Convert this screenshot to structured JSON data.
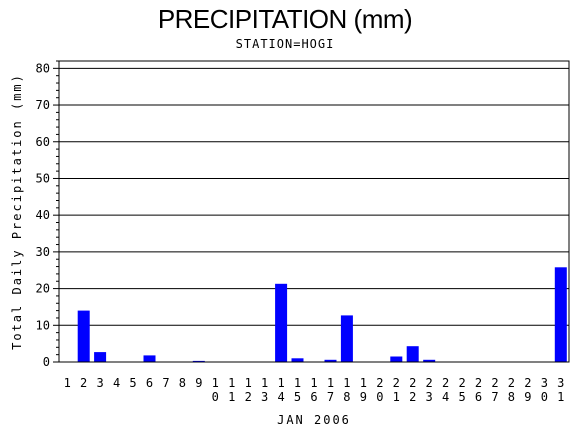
{
  "title": "PRECIPITATION (mm)",
  "subtitle": "STATION=HOGI",
  "chart_data": {
    "type": "bar",
    "title": "PRECIPITATION (mm)",
    "subtitle": "STATION=HOGI",
    "xlabel": "JAN 2006",
    "ylabel": "Total Daily Precipitation (mm)",
    "ylim": [
      0,
      82
    ],
    "yticks": [
      0,
      10,
      20,
      30,
      40,
      50,
      60,
      70,
      80
    ],
    "grid": true,
    "bar_color": "#0000ff",
    "categories": [
      "1",
      "2",
      "3",
      "4",
      "5",
      "6",
      "7",
      "8",
      "9",
      "10",
      "11",
      "12",
      "13",
      "14",
      "15",
      "16",
      "17",
      "18",
      "19",
      "20",
      "21",
      "22",
      "23",
      "24",
      "25",
      "26",
      "27",
      "28",
      "29",
      "30",
      "31"
    ],
    "values": [
      0,
      14,
      2.7,
      0,
      0,
      1.8,
      0,
      0,
      0.3,
      0,
      0,
      0,
      0,
      21.3,
      1.0,
      0,
      0.6,
      12.7,
      0,
      0,
      1.5,
      4.3,
      0.6,
      0,
      0,
      0,
      0,
      0,
      0,
      0,
      25.8
    ]
  }
}
